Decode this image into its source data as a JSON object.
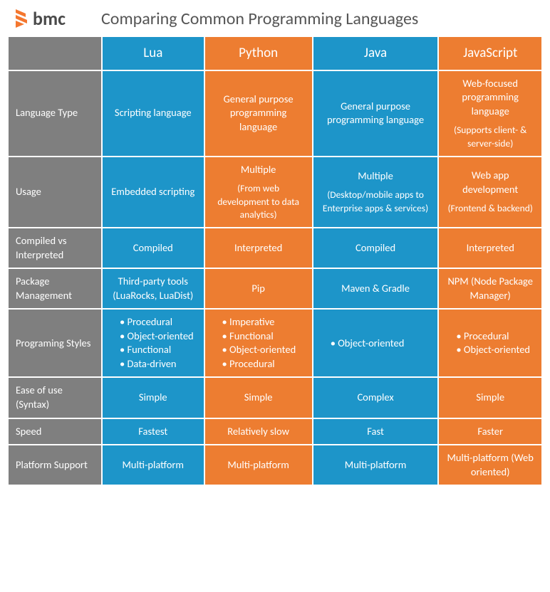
{
  "brand": "bmc",
  "title": "Comparing Common Programming Languages",
  "colors": {
    "blue": "#1d95c9",
    "orange": "#ed7d31",
    "gray": "#7f7f7f",
    "logo_orange": "#f4772f"
  },
  "columns": [
    "Lua",
    "Python",
    "Java",
    "JavaScript"
  ],
  "column_colors": [
    "blue",
    "orange",
    "blue",
    "orange"
  ],
  "rows": [
    {
      "label": "Language Type",
      "cells": [
        {
          "main": "Scripting language"
        },
        {
          "main": "General purpose programming language"
        },
        {
          "main": "General purpose programming language"
        },
        {
          "main": "Web-focused programming language",
          "sub": "(Supports client- & server-side)"
        }
      ]
    },
    {
      "label": "Usage",
      "cells": [
        {
          "main": "Embedded scripting"
        },
        {
          "main": "Multiple",
          "sub": "(From web development to data analytics)"
        },
        {
          "main": "Multiple",
          "sub": "(Desktop/mobile apps to Enterprise apps & services)"
        },
        {
          "main": "Web app development",
          "sub": "(Frontend & backend)"
        }
      ]
    },
    {
      "label": "Compiled vs Interpreted",
      "cells": [
        {
          "main": "Compiled"
        },
        {
          "main": "Interpreted"
        },
        {
          "main": "Compiled"
        },
        {
          "main": "Interpreted"
        }
      ]
    },
    {
      "label": "Package Management",
      "cells": [
        {
          "main": "Third-party tools (LuaRocks, LuaDist)"
        },
        {
          "main": "Pip"
        },
        {
          "main": "Maven & Gradle"
        },
        {
          "main": "NPM (Node Package Manager)"
        }
      ]
    },
    {
      "label": "Programing Styles",
      "type": "list",
      "cells": [
        {
          "list": [
            "Procedural",
            "Object-oriented",
            "Functional",
            "Data-driven"
          ]
        },
        {
          "list": [
            "Imperative",
            "Functional",
            "Object-oriented",
            "Procedural"
          ]
        },
        {
          "list": [
            "Object-oriented"
          ]
        },
        {
          "list": [
            "Procedural",
            "Object-oriented"
          ]
        }
      ]
    },
    {
      "label": "Ease of use (Syntax)",
      "cells": [
        {
          "main": "Simple"
        },
        {
          "main": "Simple"
        },
        {
          "main": "Complex"
        },
        {
          "main": "Simple"
        }
      ]
    },
    {
      "label": "Speed",
      "cells": [
        {
          "main": "Fastest"
        },
        {
          "main": "Relatively slow"
        },
        {
          "main": "Fast"
        },
        {
          "main": "Faster"
        }
      ]
    },
    {
      "label": "Platform Support",
      "cells": [
        {
          "main": "Multi-platform"
        },
        {
          "main": "Multi-platform"
        },
        {
          "main": "Multi-platform"
        },
        {
          "main": "Multi-platform (Web oriented)"
        }
      ]
    }
  ]
}
